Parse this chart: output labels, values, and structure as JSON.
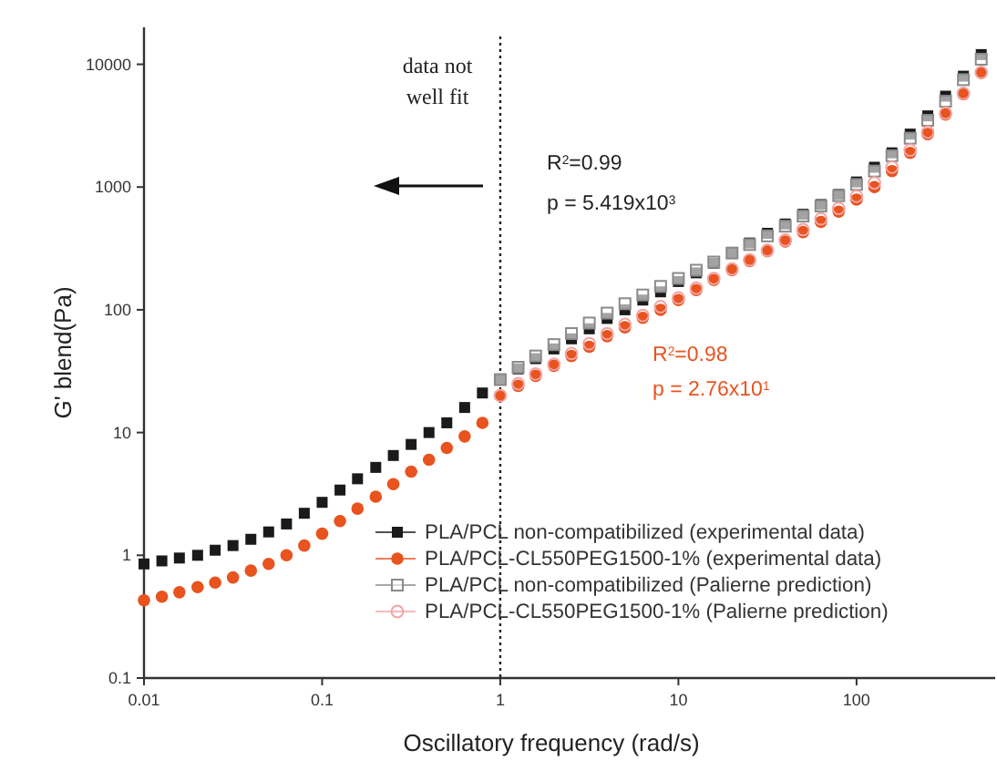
{
  "chart_data": {
    "type": "scatter",
    "xlabel": "Oscillatory frequency (rad/s)",
    "ylabel": "G' blend(Pa)",
    "log": "xy",
    "xlim": [
      0.01,
      600
    ],
    "ylim": [
      0.1,
      20000
    ],
    "xticks": [
      {
        "value": 0.01,
        "label": "0.01"
      },
      {
        "value": 0.1,
        "label": "0.1"
      },
      1,
      10,
      100
    ],
    "yticks": [
      {
        "value": 0.1,
        "label": "0.1"
      },
      1,
      10,
      100,
      1000,
      10000
    ],
    "grid": false,
    "legend": "bottom right",
    "ref_lines": [
      {
        "axis": "x",
        "value": 1,
        "line_style": "dotted",
        "color": "#222222"
      }
    ],
    "annotations": [
      "data not well fit",
      "R$^{2}$=0.99",
      "p = 5.419x10$^{3}$",
      "R$^{2}$=0.98",
      "p = 2.76x10$^{1}$"
    ],
    "series": [
      {
        "name": "PLA/PCL non-compatibilized (experimental data)",
        "color": "#1a1a1a",
        "marker": "square",
        "x": [
          0.01,
          0.0126,
          0.0158,
          0.02,
          0.0251,
          0.0316,
          0.0398,
          0.0501,
          0.0631,
          0.0794,
          0.1,
          0.126,
          0.158,
          0.2,
          0.251,
          0.316,
          0.398,
          0.501,
          0.631,
          0.794,
          1,
          1.26,
          1.58,
          2,
          2.51,
          3.16,
          3.98,
          5.01,
          6.31,
          7.94,
          10,
          12.6,
          15.8,
          20,
          25.1,
          31.6,
          39.8,
          50.1,
          63.1,
          79.4,
          100,
          126,
          158,
          200,
          251,
          316,
          398,
          501
        ],
        "values": [
          0.85,
          0.9,
          0.95,
          1,
          1.1,
          1.2,
          1.35,
          1.55,
          1.8,
          2.2,
          2.7,
          3.4,
          4.2,
          5.2,
          6.5,
          8,
          10,
          12,
          16,
          21,
          27,
          33,
          40,
          48,
          58,
          70,
          85,
          100,
          120,
          140,
          170,
          200,
          240,
          290,
          350,
          420,
          500,
          600,
          720,
          870,
          1100,
          1450,
          1900,
          2700,
          3800,
          5500,
          8000,
          12000
        ]
      },
      {
        "name": "PLA/PCL-CL550PEG1500-1% (experimental data)",
        "color": "#e8531e",
        "marker": "circle",
        "x": [
          0.01,
          0.0126,
          0.0158,
          0.02,
          0.0251,
          0.0316,
          0.0398,
          0.0501,
          0.0631,
          0.0794,
          0.1,
          0.126,
          0.158,
          0.2,
          0.251,
          0.316,
          0.398,
          0.501,
          0.631,
          0.794,
          1,
          1.26,
          1.58,
          2,
          2.51,
          3.16,
          3.98,
          5.01,
          6.31,
          7.94,
          10,
          12.6,
          15.8,
          20,
          25.1,
          31.6,
          39.8,
          50.1,
          63.1,
          79.4,
          100,
          126,
          158,
          200,
          251,
          316,
          398,
          501
        ],
        "values": [
          0.43,
          0.46,
          0.5,
          0.55,
          0.6,
          0.66,
          0.75,
          0.85,
          1,
          1.2,
          1.5,
          1.9,
          2.4,
          3,
          3.8,
          4.8,
          6,
          7.5,
          9.3,
          12,
          20,
          24,
          29,
          35,
          42,
          50,
          61,
          72,
          86,
          100,
          120,
          145,
          175,
          210,
          250,
          300,
          360,
          430,
          520,
          630,
          790,
          1000,
          1350,
          1900,
          2700,
          3900,
          5700,
          8500
        ]
      },
      {
        "name": "PLA/PCL non-compatibilized (Palierne prediction)",
        "color": "#8a8a8a",
        "marker": "square",
        "x": [
          1,
          1.26,
          1.58,
          2,
          2.51,
          3.16,
          3.98,
          5.01,
          6.31,
          7.94,
          10,
          12.6,
          15.8,
          20,
          25.1,
          31.6,
          39.8,
          50.1,
          63.1,
          79.4,
          100,
          126,
          158,
          200,
          251,
          316,
          398,
          501
        ],
        "values": [
          27,
          34,
          42,
          52,
          64,
          78,
          94,
          112,
          132,
          155,
          180,
          210,
          245,
          290,
          340,
          400,
          480,
          580,
          700,
          850,
          1050,
          1350,
          1800,
          2500,
          3500,
          5000,
          7500,
          11000
        ]
      },
      {
        "name": "PLA/PCL-CL550PEG1500-1% (Palierne prediction)",
        "color": "#f2a3a3",
        "marker": "circle",
        "x": [
          1,
          1.26,
          1.58,
          2,
          2.51,
          3.16,
          3.98,
          5.01,
          6.31,
          7.94,
          10,
          12.6,
          15.8,
          20,
          25.1,
          31.6,
          39.8,
          50.1,
          63.1,
          79.4,
          100,
          126,
          158,
          200,
          251,
          316,
          398,
          501
        ],
        "values": [
          20,
          25,
          30,
          36,
          44,
          53,
          64,
          76,
          90,
          106,
          125,
          150,
          180,
          215,
          255,
          305,
          370,
          450,
          550,
          670,
          840,
          1080,
          1450,
          2000,
          2800,
          4000,
          5800,
          8600
        ]
      }
    ]
  }
}
